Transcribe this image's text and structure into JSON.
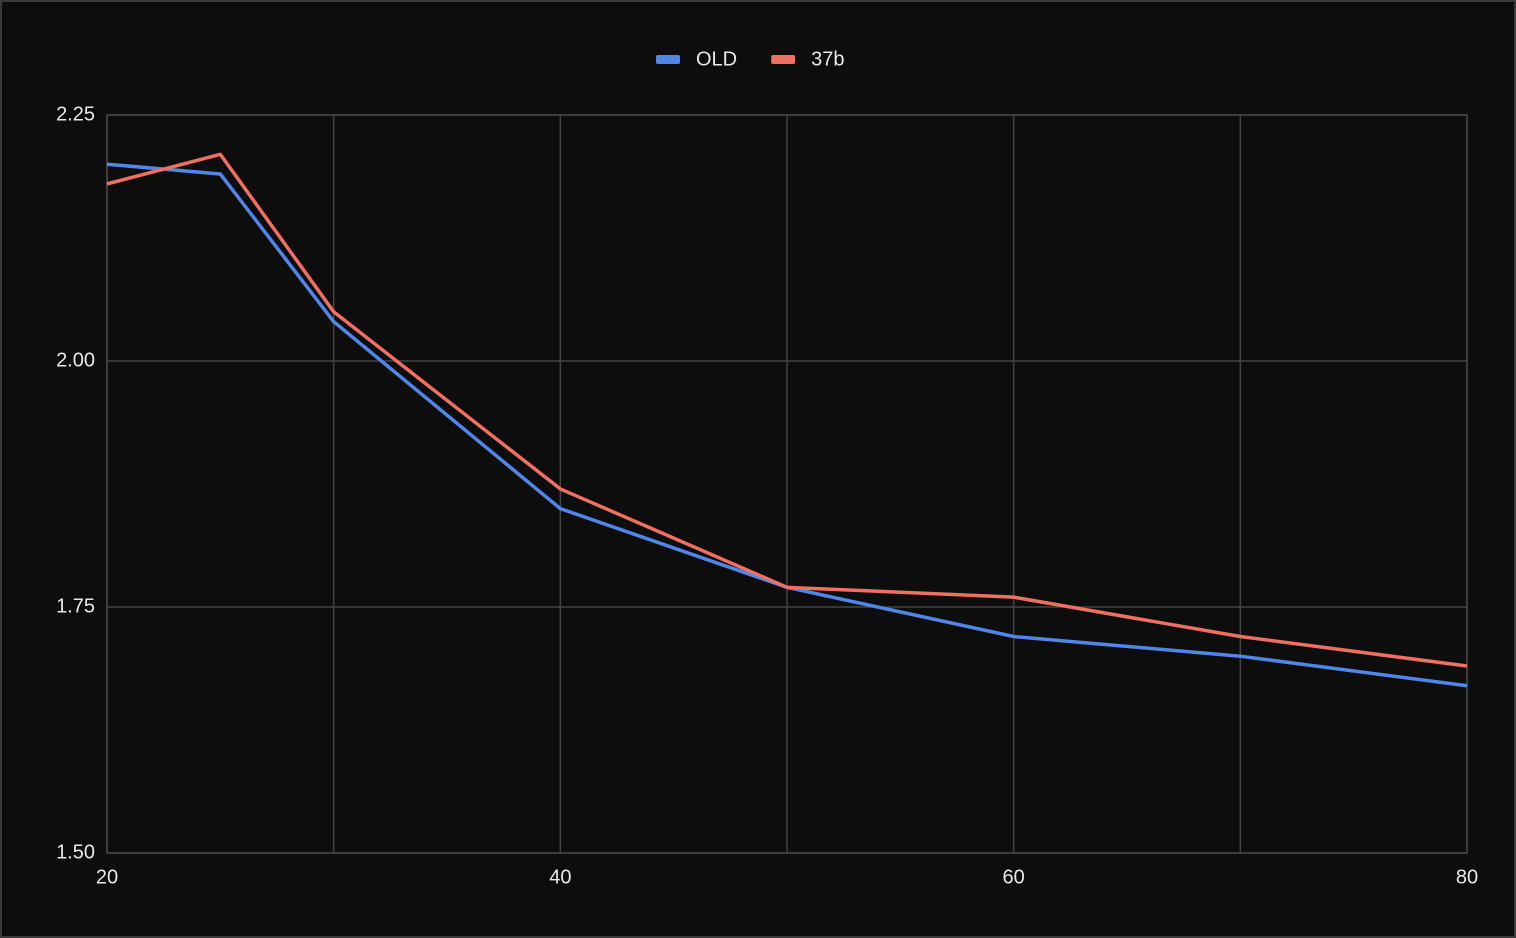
{
  "chart_data": {
    "type": "line",
    "x": [
      20,
      25,
      30,
      40,
      50,
      60,
      70,
      80
    ],
    "series": [
      {
        "name": "OLD",
        "color": "#4f86e8",
        "values": [
          2.2,
          2.19,
          2.04,
          1.85,
          1.77,
          1.72,
          1.7,
          1.67
        ]
      },
      {
        "name": "37b",
        "color": "#ef6f61",
        "values": [
          2.18,
          2.21,
          2.05,
          1.87,
          1.77,
          1.76,
          1.72,
          1.69
        ]
      }
    ],
    "xlim": [
      20,
      80
    ],
    "xticks": [
      20,
      40,
      60,
      80
    ],
    "xgrid_minor": [
      30,
      50,
      70
    ],
    "ylim": [
      1.5,
      2.25
    ],
    "yticks": [
      {
        "value": 1.5,
        "label": "1.50"
      },
      {
        "value": 1.75,
        "label": "1.75"
      },
      {
        "value": 2,
        "label": "2.00"
      },
      {
        "value": 2.25,
        "label": "2.25"
      }
    ],
    "grid": true,
    "legend": "top"
  }
}
